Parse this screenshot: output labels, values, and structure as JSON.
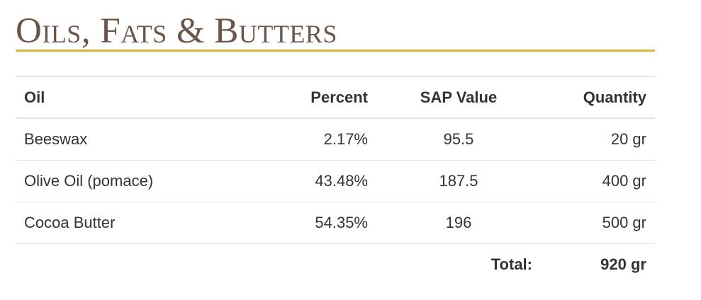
{
  "section": {
    "title": "Oils, Fats & Butters"
  },
  "table": {
    "headers": {
      "oil": "Oil",
      "percent": "Percent",
      "sap": "SAP Value",
      "quantity": "Quantity"
    },
    "rows": [
      {
        "oil": "Beeswax",
        "percent": "2.17%",
        "sap": "95.5",
        "quantity": "20 gr"
      },
      {
        "oil": "Olive Oil (pomace)",
        "percent": "43.48%",
        "sap": "187.5",
        "quantity": "400 gr"
      },
      {
        "oil": "Cocoa Butter",
        "percent": "54.35%",
        "sap": "196",
        "quantity": "500 gr"
      }
    ],
    "total": {
      "label": "Total:",
      "value": "920 gr"
    }
  },
  "colors": {
    "title": "#6b5548",
    "accent_rule": "#d8b43c",
    "text": "#333333",
    "row_border": "#e3e3e3"
  }
}
